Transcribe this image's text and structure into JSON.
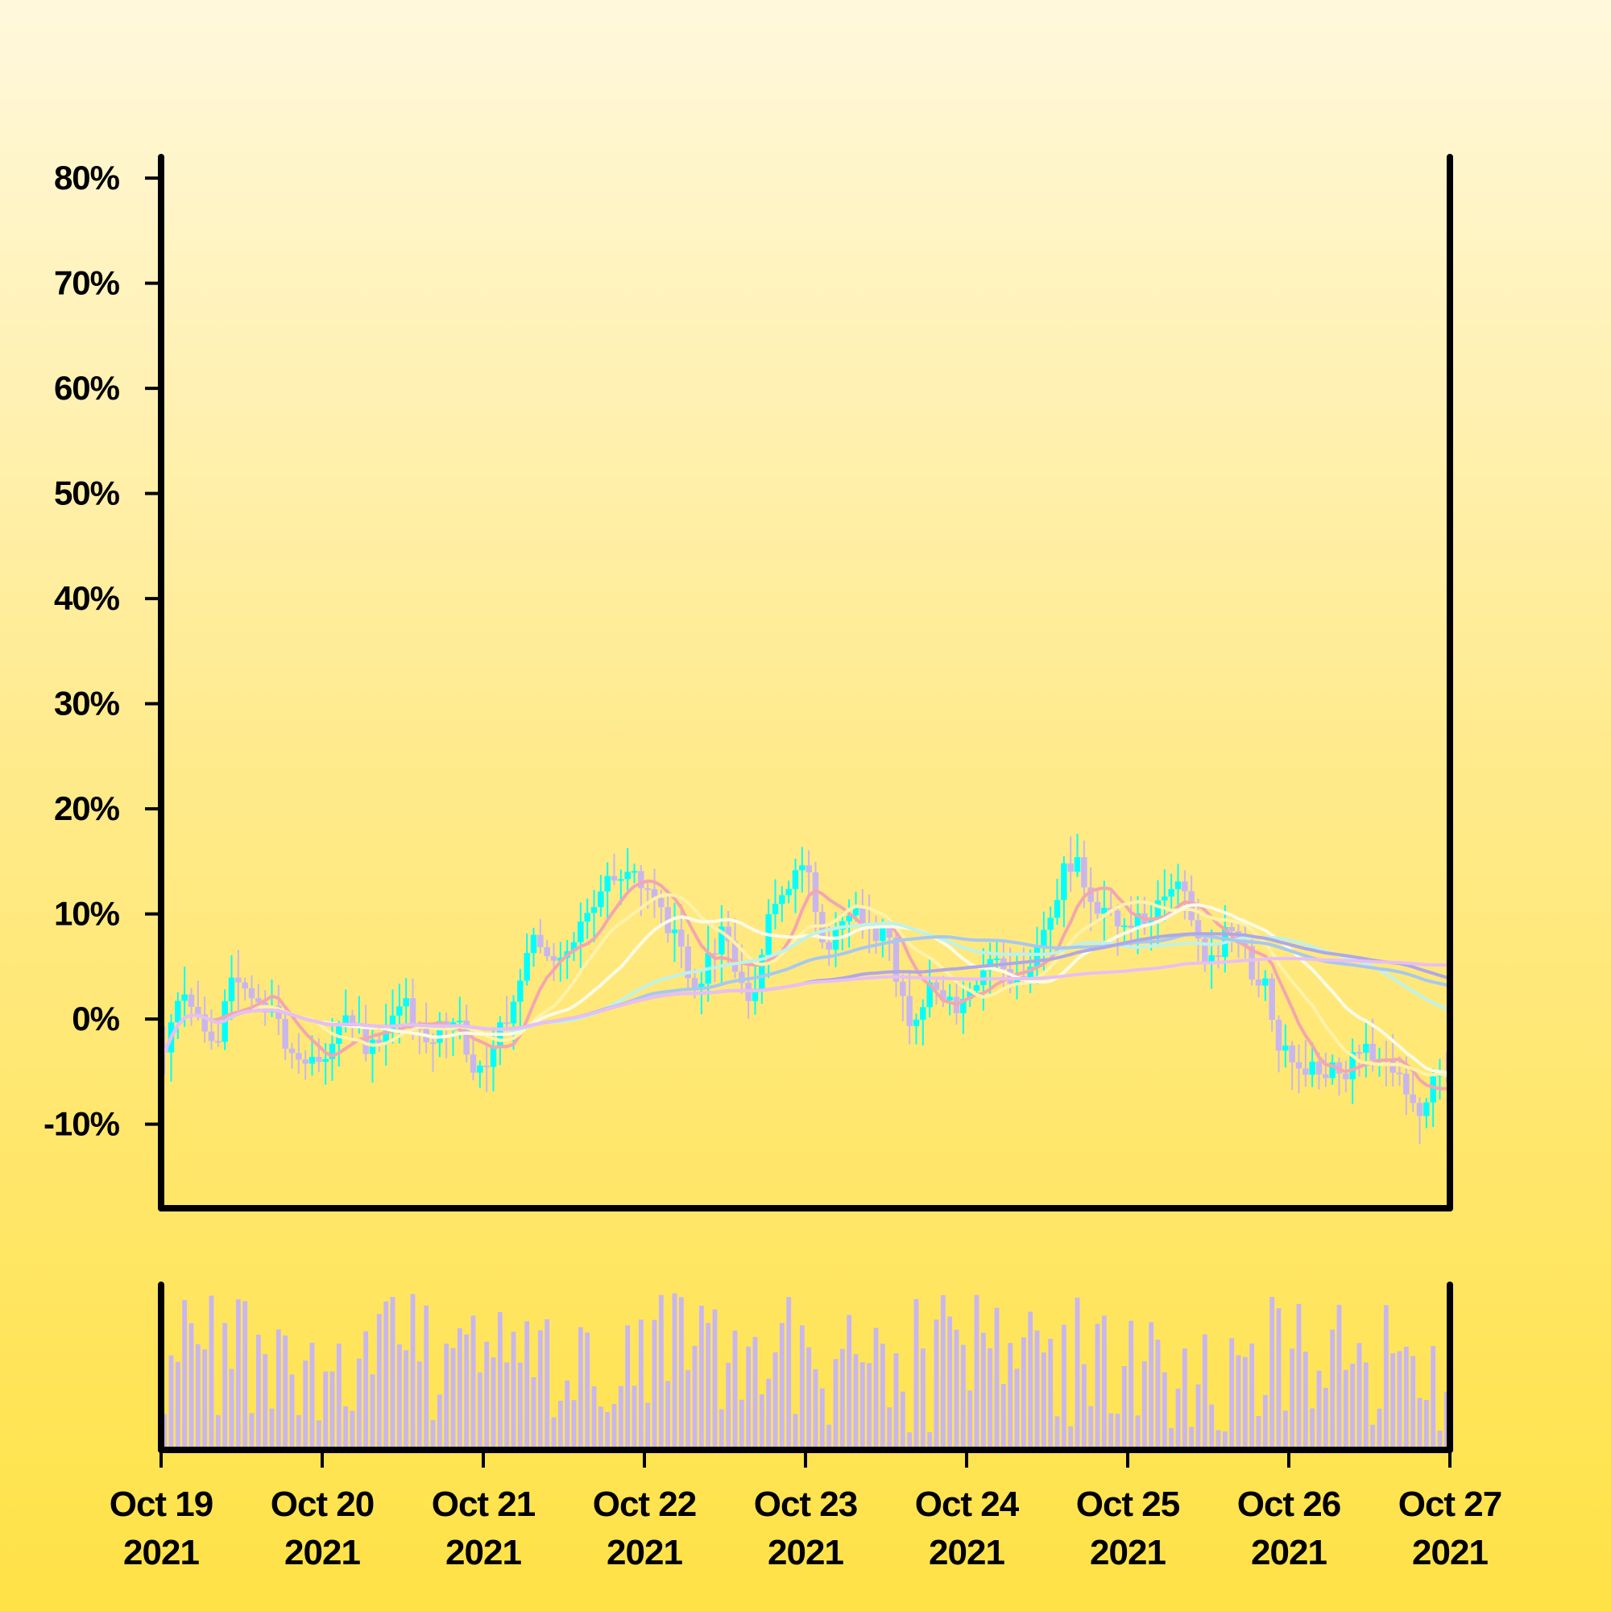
{
  "chart_data": {
    "type": "candlestick",
    "subtype": "percent-change candlestick with moving averages and volume bars",
    "y_axis": {
      "unit": "%",
      "range": [
        -18,
        82
      ],
      "ticks": [
        "80%",
        "70%",
        "60%",
        "50%",
        "40%",
        "30%",
        "20%",
        "10%",
        "0%",
        "-10%"
      ],
      "tick_values": [
        80,
        70,
        60,
        50,
        40,
        30,
        20,
        10,
        0,
        -10
      ]
    },
    "x_axis": {
      "start": "2021-10-19",
      "end": "2021-10-27",
      "ticks": [
        {
          "date": "2021-10-19",
          "line1": "Oct 19",
          "line2": "2021"
        },
        {
          "date": "2021-10-20",
          "line1": "Oct 20",
          "line2": "2021"
        },
        {
          "date": "2021-10-21",
          "line1": "Oct 21",
          "line2": "2021"
        },
        {
          "date": "2021-10-22",
          "line1": "Oct 22",
          "line2": "2021"
        },
        {
          "date": "2021-10-23",
          "line1": "Oct 23",
          "line2": "2021"
        },
        {
          "date": "2021-10-24",
          "line1": "Oct 24",
          "line2": "2021"
        },
        {
          "date": "2021-10-25",
          "line1": "Oct 25",
          "line2": "2021"
        },
        {
          "date": "2021-10-26",
          "line1": "Oct 26",
          "line2": "2021"
        },
        {
          "date": "2021-10-27",
          "line1": "Oct 27",
          "line2": "2021"
        }
      ]
    },
    "close_path": [
      [
        "2021-10-19 00:00",
        -3
      ],
      [
        "2021-10-19 04:00",
        2
      ],
      [
        "2021-10-19 08:00",
        -2
      ],
      [
        "2021-10-19 12:00",
        4
      ],
      [
        "2021-10-19 16:00",
        1
      ],
      [
        "2021-10-19 20:00",
        -3
      ],
      [
        "2021-10-20 00:00",
        -4
      ],
      [
        "2021-10-20 04:00",
        0
      ],
      [
        "2021-10-20 08:00",
        -3
      ],
      [
        "2021-10-20 12:00",
        2
      ],
      [
        "2021-10-20 16:00",
        -2
      ],
      [
        "2021-10-20 20:00",
        0
      ],
      [
        "2021-10-21 00:00",
        -5
      ],
      [
        "2021-10-21 04:00",
        0
      ],
      [
        "2021-10-21 08:00",
        8
      ],
      [
        "2021-10-21 12:00",
        6
      ],
      [
        "2021-10-21 16:00",
        10
      ],
      [
        "2021-10-21 20:00",
        13
      ],
      [
        "2021-10-22 00:00",
        13
      ],
      [
        "2021-10-22 04:00",
        9
      ],
      [
        "2021-10-22 08:00",
        3
      ],
      [
        "2021-10-22 12:00",
        8
      ],
      [
        "2021-10-22 16:00",
        2
      ],
      [
        "2021-10-22 20:00",
        12
      ],
      [
        "2021-10-23 00:00",
        14
      ],
      [
        "2021-10-23 04:00",
        7
      ],
      [
        "2021-10-23 08:00",
        10
      ],
      [
        "2021-10-23 12:00",
        8
      ],
      [
        "2021-10-23 16:00",
        0
      ],
      [
        "2021-10-23 20:00",
        3
      ],
      [
        "2021-10-24 00:00",
        1
      ],
      [
        "2021-10-24 04:00",
        5
      ],
      [
        "2021-10-24 08:00",
        4
      ],
      [
        "2021-10-24 12:00",
        8
      ],
      [
        "2021-10-24 16:00",
        15
      ],
      [
        "2021-10-24 20:00",
        11
      ],
      [
        "2021-10-25 00:00",
        8
      ],
      [
        "2021-10-25 04:00",
        10
      ],
      [
        "2021-10-25 08:00",
        12
      ],
      [
        "2021-10-25 12:00",
        6
      ],
      [
        "2021-10-25 16:00",
        8
      ],
      [
        "2021-10-25 20:00",
        4
      ],
      [
        "2021-10-26 00:00",
        -3
      ],
      [
        "2021-10-26 04:00",
        -5
      ],
      [
        "2021-10-26 08:00",
        -5
      ],
      [
        "2021-10-26 12:00",
        -3
      ],
      [
        "2021-10-26 16:00",
        -5
      ],
      [
        "2021-10-26 20:00",
        -9
      ],
      [
        "2021-10-27 00:00",
        -4
      ]
    ],
    "candle_interval_hours": 1,
    "up_color": "#00ffff",
    "down_color": "#c9b6ee",
    "volume_color": "#c9b6ee",
    "moving_averages": [
      {
        "color": "#f4a6b0",
        "window_candles": 8
      },
      {
        "color": "#fff2a8",
        "window_candles": 14
      },
      {
        "color": "#fbfbe6",
        "window_candles": 24
      },
      {
        "color": "#bff2e8",
        "window_candles": 48
      },
      {
        "color": "#a8c8ee",
        "window_candles": 64
      },
      {
        "color": "#b0a8e6",
        "window_candles": 96
      },
      {
        "color": "#e8bff2",
        "window_candles": 144
      }
    ],
    "volume": {
      "unit": "relative",
      "range": [
        0,
        1
      ]
    },
    "legend": "none",
    "grid": false
  }
}
